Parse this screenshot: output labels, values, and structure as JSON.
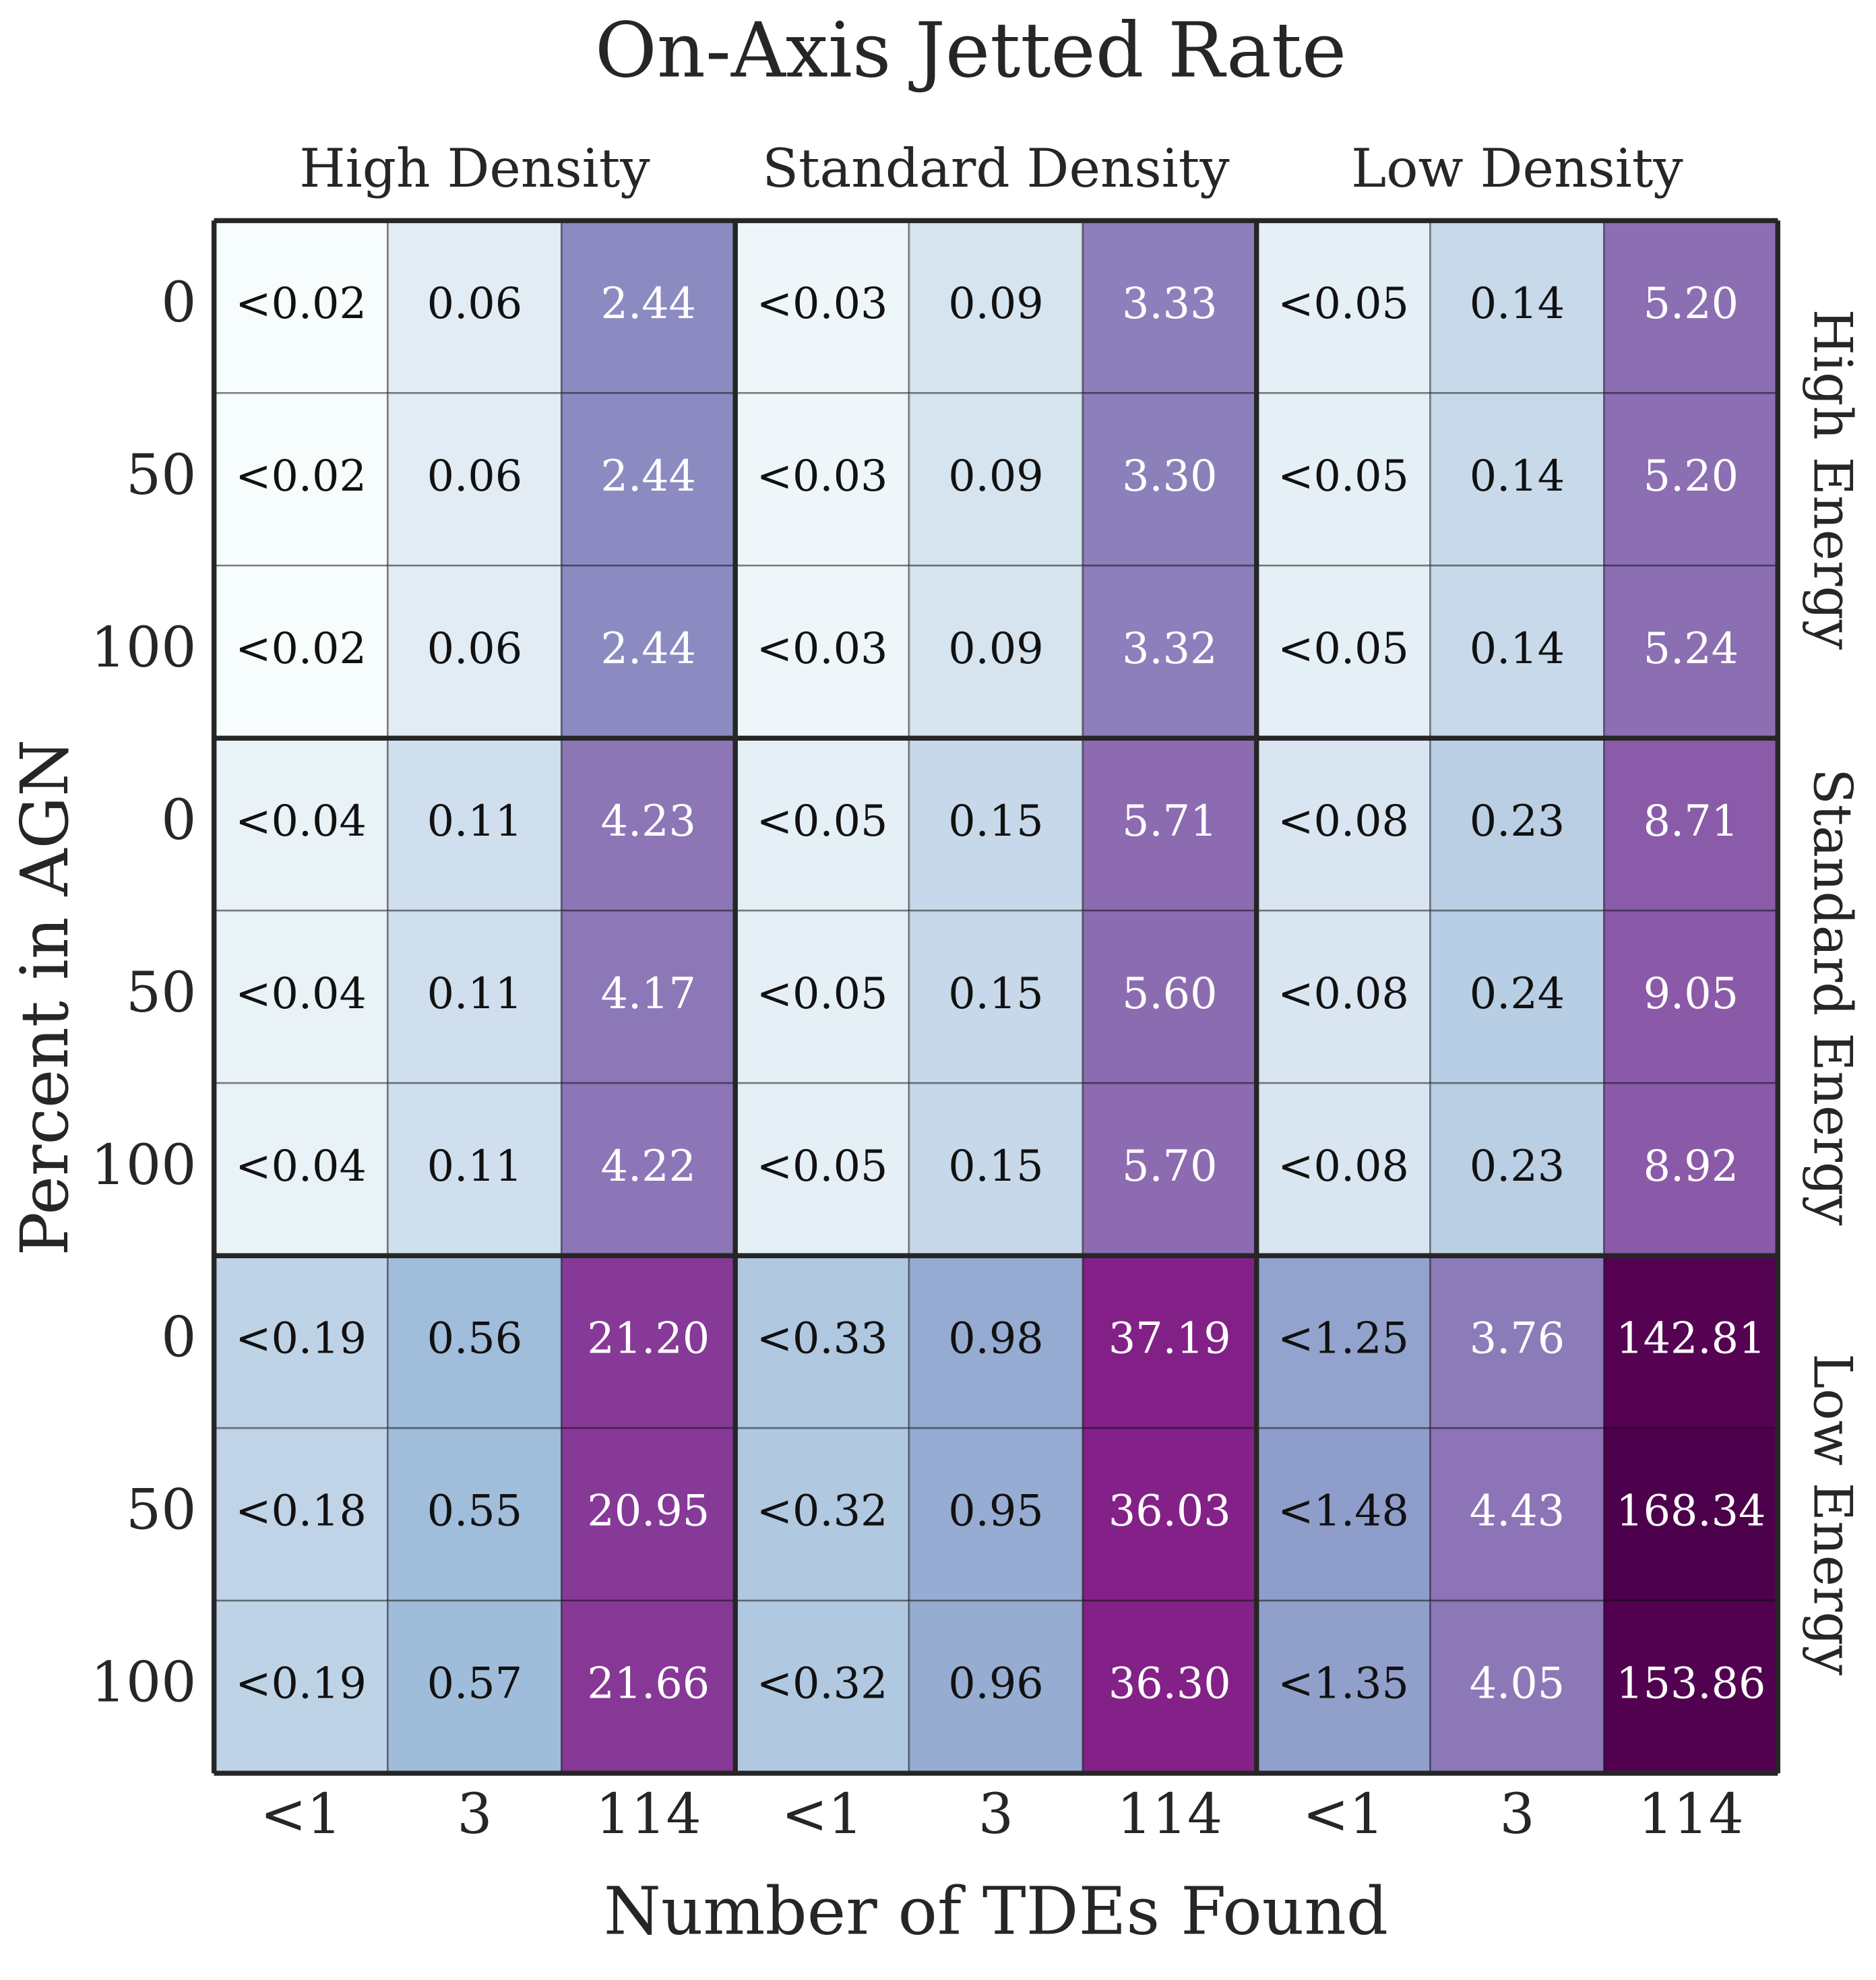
{
  "chart_data": {
    "type": "heatmap",
    "title": "On-Axis Jetted Rate",
    "x_label": "Number of TDEs Found",
    "y_label": "Percent in AGN",
    "x_categories": [
      "<1",
      "3",
      "114",
      "<1",
      "3",
      "114",
      "<1",
      "3",
      "114"
    ],
    "y_categories": [
      "0",
      "50",
      "100",
      "0",
      "50",
      "100",
      "0",
      "50",
      "100"
    ],
    "x_groups": [
      "High Density",
      "Standard Density",
      "Low Density"
    ],
    "y_groups": [
      "High Energy",
      "Standard Energy",
      "Low Energy"
    ],
    "colormap": "BuPu",
    "log_scale": true,
    "values": [
      [
        0.02,
        0.06,
        2.44,
        0.03,
        0.09,
        3.33,
        0.05,
        0.14,
        5.2
      ],
      [
        0.02,
        0.06,
        2.44,
        0.03,
        0.09,
        3.3,
        0.05,
        0.14,
        5.2
      ],
      [
        0.02,
        0.06,
        2.44,
        0.03,
        0.09,
        3.32,
        0.05,
        0.14,
        5.24
      ],
      [
        0.04,
        0.11,
        4.23,
        0.05,
        0.15,
        5.71,
        0.08,
        0.23,
        8.71
      ],
      [
        0.04,
        0.11,
        4.17,
        0.05,
        0.15,
        5.6,
        0.08,
        0.24,
        9.05
      ],
      [
        0.04,
        0.11,
        4.22,
        0.05,
        0.15,
        5.7,
        0.08,
        0.23,
        8.92
      ],
      [
        0.19,
        0.56,
        21.2,
        0.33,
        0.98,
        37.19,
        1.25,
        3.76,
        142.81
      ],
      [
        0.18,
        0.55,
        20.95,
        0.32,
        0.95,
        36.03,
        1.48,
        4.43,
        168.34
      ],
      [
        0.19,
        0.57,
        21.66,
        0.32,
        0.96,
        36.3,
        1.35,
        4.05,
        153.86
      ]
    ],
    "value_labels": [
      [
        "<0.02",
        "0.06",
        "2.44",
        "<0.03",
        "0.09",
        "3.33",
        "<0.05",
        "0.14",
        "5.20"
      ],
      [
        "<0.02",
        "0.06",
        "2.44",
        "<0.03",
        "0.09",
        "3.30",
        "<0.05",
        "0.14",
        "5.20"
      ],
      [
        "<0.02",
        "0.06",
        "2.44",
        "<0.03",
        "0.09",
        "3.32",
        "<0.05",
        "0.14",
        "5.24"
      ],
      [
        "<0.04",
        "0.11",
        "4.23",
        "<0.05",
        "0.15",
        "5.71",
        "<0.08",
        "0.23",
        "8.71"
      ],
      [
        "<0.04",
        "0.11",
        "4.17",
        "<0.05",
        "0.15",
        "5.60",
        "<0.08",
        "0.24",
        "9.05"
      ],
      [
        "<0.04",
        "0.11",
        "4.22",
        "<0.05",
        "0.15",
        "5.70",
        "<0.08",
        "0.23",
        "8.92"
      ],
      [
        "<0.19",
        "0.56",
        "21.20",
        "<0.33",
        "0.98",
        "37.19",
        "<1.25",
        "3.76",
        "142.81"
      ],
      [
        "<0.18",
        "0.55",
        "20.95",
        "<0.32",
        "0.95",
        "36.03",
        "<1.48",
        "4.43",
        "168.34"
      ],
      [
        "<0.19",
        "0.57",
        "21.66",
        "<0.32",
        "0.96",
        "36.30",
        "<1.35",
        "4.05",
        "153.86"
      ]
    ]
  }
}
